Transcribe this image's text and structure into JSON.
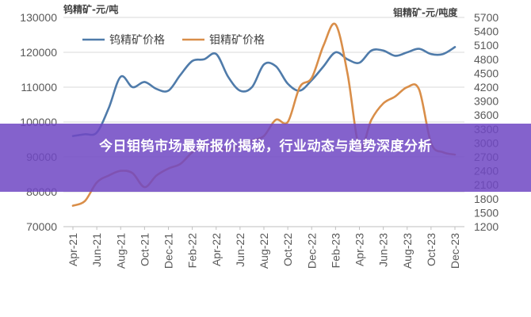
{
  "chart_data": {
    "type": "line",
    "left_axis_title": "钨精矿-元/吨",
    "right_axis_title": "钼精矿-元/吨度",
    "left_ylim": [
      70000,
      130000
    ],
    "left_ticks": [
      70000,
      80000,
      90000,
      100000,
      110000,
      120000,
      130000
    ],
    "right_ylim": [
      1200,
      5700
    ],
    "right_ticks": [
      1200,
      1500,
      1800,
      2100,
      2400,
      2700,
      3000,
      3300,
      3600,
      3900,
      4200,
      4500,
      4800,
      5100,
      5400,
      5700
    ],
    "x_ticks": [
      "Apr-21",
      "Jun-21",
      "Aug-21",
      "Oct-21",
      "Dec-21",
      "Feb-22",
      "Apr-22",
      "Jun-22",
      "Aug-22",
      "Oct-22",
      "Dec-22",
      "Feb-23",
      "Apr-23",
      "Jun-23",
      "Aug-23",
      "Oct-23",
      "Dec-23"
    ],
    "legend_position": "top-left",
    "grid": "horizontal",
    "series": [
      {
        "name": "钨精矿价格",
        "axis": "left",
        "color": "#4F7BAA",
        "x": [
          "Apr-21",
          "May-21",
          "Jun-21",
          "Jul-21",
          "Aug-21",
          "Sep-21",
          "Oct-21",
          "Nov-21",
          "Dec-21",
          "Jan-22",
          "Feb-22",
          "Mar-22",
          "Apr-22",
          "May-22",
          "Jun-22",
          "Jul-22",
          "Aug-22",
          "Sep-22",
          "Oct-22",
          "Nov-22",
          "Dec-22",
          "Jan-23",
          "Feb-23",
          "Mar-23",
          "Apr-23",
          "May-23",
          "Jun-23",
          "Jul-23",
          "Aug-23",
          "Sep-23",
          "Oct-23",
          "Nov-23",
          "Dec-23"
        ],
        "values": [
          96000,
          96500,
          97000,
          104000,
          113000,
          110000,
          111500,
          109500,
          109000,
          113500,
          117500,
          118000,
          119500,
          113000,
          109000,
          110000,
          116500,
          116000,
          111000,
          109000,
          112000,
          116000,
          120000,
          118000,
          117000,
          120500,
          120500,
          119000,
          120000,
          121000,
          119500,
          119500,
          121500
        ]
      },
      {
        "name": "钼精矿价格",
        "axis": "right",
        "color": "#D98E49",
        "x": [
          "Apr-21",
          "May-21",
          "Jun-21",
          "Jul-21",
          "Aug-21",
          "Sep-21",
          "Oct-21",
          "Nov-21",
          "Dec-21",
          "Jan-22",
          "Feb-22",
          "Mar-22",
          "Apr-22",
          "May-22",
          "Jun-22",
          "Jul-22",
          "Aug-22",
          "Sep-22",
          "Oct-22",
          "Nov-22",
          "Dec-22",
          "Jan-23",
          "Feb-23",
          "Mar-23",
          "Apr-23",
          "May-23",
          "Jun-23",
          "Jul-23",
          "Aug-23",
          "Sep-23",
          "Oct-23",
          "Nov-23",
          "Dec-23"
        ],
        "values": [
          1650,
          1750,
          2150,
          2300,
          2400,
          2350,
          2050,
          2300,
          2450,
          2550,
          2800,
          2950,
          2900,
          2850,
          2950,
          3050,
          3150,
          3500,
          3450,
          4200,
          4400,
          5100,
          5550,
          4500,
          2900,
          3500,
          3850,
          4000,
          4200,
          4150,
          3000,
          2800,
          2750
        ]
      }
    ]
  },
  "banner": {
    "title": "今日钼钨市场最新报价揭秘，行业动态与趋势深度分析"
  }
}
